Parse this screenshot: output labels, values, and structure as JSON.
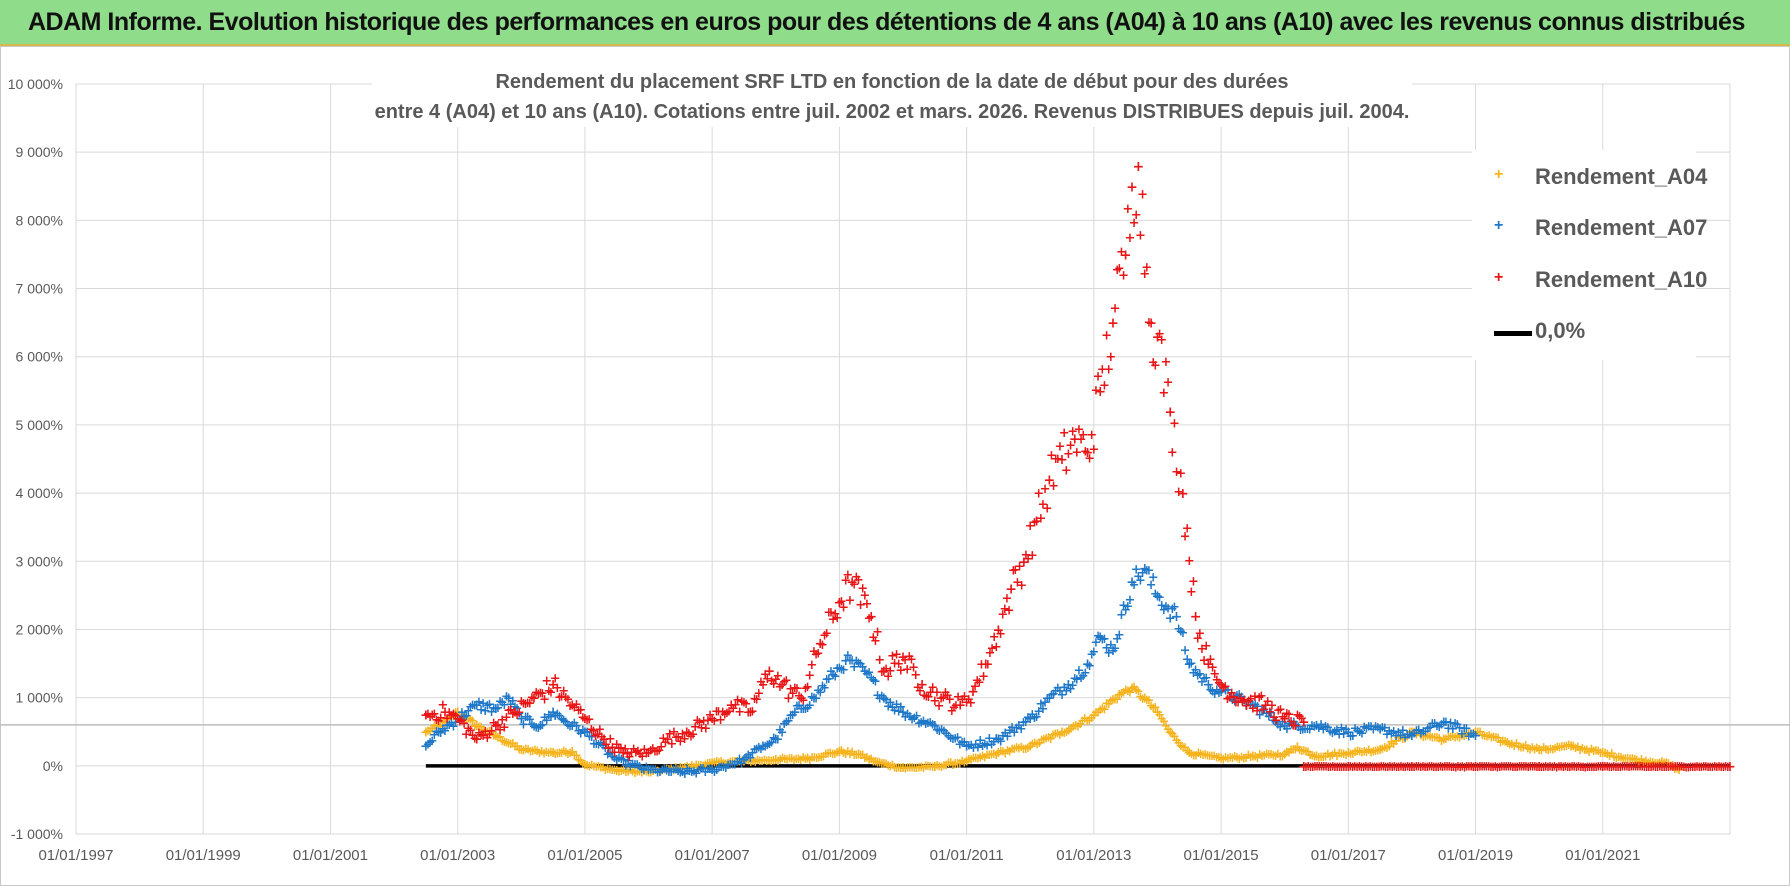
{
  "banner": {
    "title": "ADAM Informe. Evolution historique des performances en euros pour des détentions de 4 ans (A04) à 10 ans (A10) avec les revenus connus distribués"
  },
  "chart_data": {
    "type": "scatter",
    "title_line1": "Rendement du placement SRF LTD en fonction de la date de début pour des durées",
    "title_line2": "entre 4 (A04) et 10 ans (A10). Cotations entre juil. 2002 et mars. 2026. Revenus DISTRIBUES depuis juil. 2004.",
    "xlim": [
      1997.0,
      2023.0
    ],
    "ylim": [
      -1000,
      10000
    ],
    "y_ticks": [
      -1000,
      0,
      1000,
      2000,
      3000,
      4000,
      5000,
      6000,
      7000,
      8000,
      9000,
      10000
    ],
    "y_tick_labels": [
      "-1 000%",
      "0%",
      "1 000%",
      "2 000%",
      "3 000%",
      "4 000%",
      "5 000%",
      "6 000%",
      "7 000%",
      "8 000%",
      "9 000%",
      "10 000%"
    ],
    "x_ticks": [
      1997,
      1999,
      2001,
      2003,
      2005,
      2007,
      2009,
      2011,
      2013,
      2015,
      2017,
      2019,
      2021
    ],
    "x_tick_labels": [
      "01/01/1997",
      "01/01/1999",
      "01/01/2001",
      "01/01/2003",
      "01/01/2005",
      "01/01/2007",
      "01/01/2009",
      "01/01/2011",
      "01/01/2013",
      "01/01/2015",
      "01/01/2017",
      "01/01/2019",
      "01/01/2021"
    ],
    "reference_level": 600,
    "series": [
      {
        "name": "Rendement_A04",
        "color": "#f5b41e",
        "x": [
          2002.5,
          2002.8,
          2003.0,
          2003.3,
          2003.6,
          2004.0,
          2004.5,
          2004.8,
          2005.0,
          2005.5,
          2006.0,
          2006.5,
          2007.0,
          2007.5,
          2008.0,
          2008.5,
          2009.0,
          2009.3,
          2009.6,
          2010.0,
          2010.5,
          2011.0,
          2011.5,
          2012.0,
          2012.5,
          2013.0,
          2013.4,
          2013.6,
          2013.8,
          2014.0,
          2014.2,
          2014.5,
          2015.0,
          2015.5,
          2016.0,
          2016.2,
          2016.5,
          2017.0,
          2017.5,
          2018.0,
          2018.5,
          2019.0,
          2019.5,
          2020.0,
          2020.5,
          2021.0,
          2021.5,
          2022.0,
          2022.2
        ],
        "values": [
          500,
          650,
          800,
          600,
          450,
          250,
          200,
          220,
          30,
          -60,
          -80,
          -20,
          50,
          80,
          100,
          120,
          220,
          180,
          60,
          -20,
          0,
          80,
          200,
          300,
          500,
          750,
          1050,
          1150,
          1000,
          800,
          500,
          200,
          120,
          150,
          180,
          280,
          150,
          200,
          250,
          500,
          400,
          500,
          350,
          250,
          300,
          200,
          100,
          50,
          -50
        ]
      },
      {
        "name": "Rendement_A07",
        "color": "#1f78c8",
        "x": [
          2002.5,
          2002.7,
          2003.0,
          2003.3,
          2003.6,
          2003.8,
          2004.0,
          2004.3,
          2004.5,
          2004.8,
          2005.0,
          2005.5,
          2006.0,
          2006.5,
          2007.0,
          2007.5,
          2007.8,
          2008.0,
          2008.3,
          2008.6,
          2008.9,
          2009.1,
          2009.4,
          2009.7,
          2010.0,
          2010.5,
          2011.0,
          2011.5,
          2012.0,
          2012.3,
          2012.6,
          2012.9,
          2013.1,
          2013.3,
          2013.6,
          2013.8,
          2014.0,
          2014.3,
          2014.5,
          2014.8,
          2015.0,
          2015.5,
          2016.0,
          2016.5,
          2017.0,
          2017.5,
          2018.0,
          2018.5,
          2019.0
        ],
        "values": [
          300,
          500,
          700,
          900,
          850,
          1000,
          700,
          600,
          800,
          600,
          500,
          100,
          -50,
          -80,
          -50,
          100,
          300,
          400,
          800,
          1000,
          1350,
          1550,
          1400,
          1000,
          800,
          600,
          300,
          400,
          700,
          1000,
          1200,
          1500,
          1900,
          1700,
          2700,
          2900,
          2500,
          2200,
          1500,
          1200,
          1100,
          900,
          600,
          600,
          500,
          550,
          450,
          650,
          450
        ]
      },
      {
        "name": "Rendement_A10",
        "color": "#e81616",
        "x": [
          2002.5,
          2002.8,
          2003.0,
          2003.3,
          2003.6,
          2003.9,
          2004.2,
          2004.5,
          2004.8,
          2005.0,
          2005.3,
          2005.6,
          2006.0,
          2006.3,
          2006.6,
          2007.0,
          2007.3,
          2007.6,
          2007.9,
          2008.1,
          2008.4,
          2008.7,
          2009.0,
          2009.2,
          2009.5,
          2009.7,
          2010.0,
          2010.3,
          2010.6,
          2010.9,
          2011.1,
          2011.3,
          2011.5,
          2011.7,
          2011.9,
          2012.1,
          2012.3,
          2012.5,
          2012.7,
          2012.9,
          2013.1,
          2013.3,
          2013.5,
          2013.6,
          2013.7,
          2013.9,
          2014.0,
          2014.2,
          2014.4,
          2014.6,
          2014.8,
          2015.0,
          2015.3,
          2015.7,
          2016.0,
          2016.3
        ],
        "values": [
          750,
          800,
          700,
          400,
          600,
          800,
          1000,
          1200,
          900,
          700,
          400,
          200,
          200,
          400,
          500,
          700,
          900,
          800,
          1400,
          1200,
          1000,
          1800,
          2400,
          2700,
          2200,
          1400,
          1600,
          1200,
          1000,
          900,
          1100,
          1500,
          2000,
          2600,
          3000,
          3600,
          4200,
          4500,
          4800,
          4600,
          5500,
          6500,
          7500,
          8500,
          8800,
          6500,
          6300,
          5200,
          4000,
          2200,
          1500,
          1200,
          1000,
          900,
          700,
          650
        ]
      },
      {
        "name": "Rendement_A10_tail",
        "color": "#e81616",
        "x": [
          2016.3,
          2017.0,
          2018.0,
          2019.0,
          2020.0,
          2021.0,
          2022.0,
          2023.0
        ],
        "values": [
          0,
          0,
          0,
          0,
          0,
          0,
          0,
          0
        ]
      }
    ],
    "zero_line": {
      "name": "0,0%",
      "color": "#000000",
      "x": [
        2002.5,
        2023.0
      ],
      "values": [
        0,
        0
      ]
    },
    "legend": [
      {
        "label": "Rendement_A04",
        "color": "#f5b41e"
      },
      {
        "label": "Rendement_A07",
        "color": "#1f78c8"
      },
      {
        "label": "Rendement_A10",
        "color": "#e81616"
      },
      {
        "label": "0,0%",
        "color": "#000000"
      }
    ]
  }
}
